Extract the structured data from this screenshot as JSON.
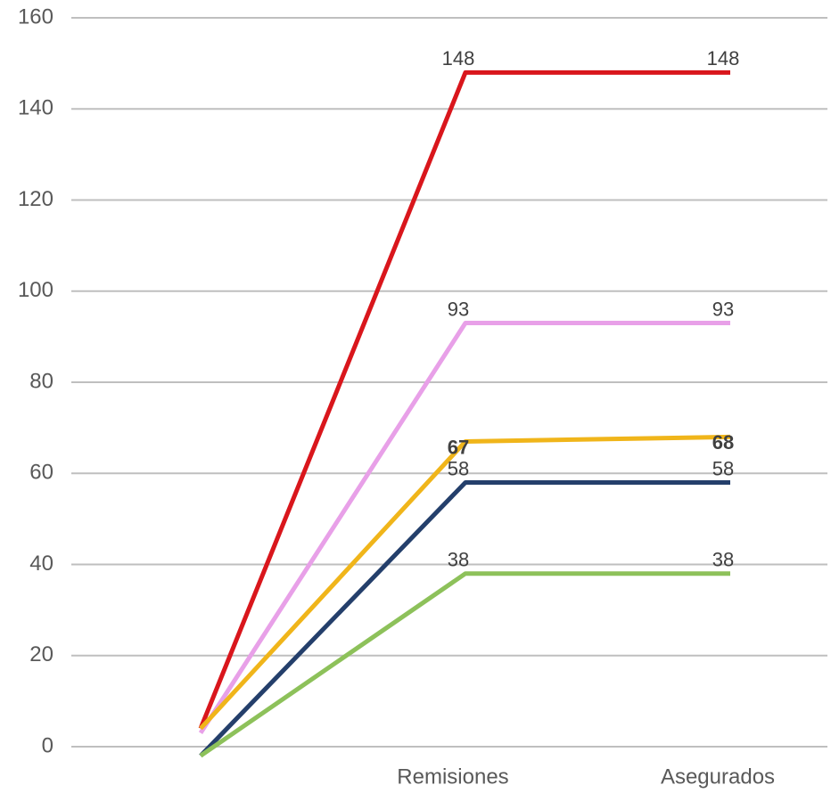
{
  "chart_data": {
    "type": "line",
    "categories": [
      null,
      "Remisiones",
      "Asegurados"
    ],
    "series": [
      {
        "color": "#d9161c",
        "values": [
          4,
          148,
          148
        ]
      },
      {
        "color": "#e8a0e8",
        "values": [
          3,
          93,
          93
        ]
      },
      {
        "color": "#f0b51a",
        "values": [
          4,
          67,
          68
        ],
        "label_bold": true
      },
      {
        "color": "#243f6b",
        "values": [
          -2,
          58,
          58
        ]
      },
      {
        "color": "#8dc15a",
        "values": [
          -2,
          38,
          38
        ]
      }
    ],
    "ylim": [
      -3,
      160
    ],
    "yticks": [
      0,
      20,
      40,
      60,
      80,
      100,
      120,
      140,
      160
    ],
    "grid": true,
    "data_labels": true
  }
}
